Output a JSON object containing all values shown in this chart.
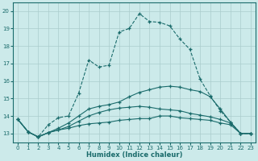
{
  "xlabel": "Humidex (Indice chaleur)",
  "background_color": "#cceaea",
  "grid_color": "#aacccc",
  "line_color": "#1a6b6b",
  "xlim": [
    -0.5,
    23.5
  ],
  "ylim": [
    12.5,
    20.5
  ],
  "yticks": [
    13,
    14,
    15,
    16,
    17,
    18,
    19,
    20
  ],
  "xticks": [
    0,
    1,
    2,
    3,
    4,
    5,
    6,
    7,
    8,
    9,
    10,
    11,
    12,
    13,
    14,
    15,
    16,
    17,
    18,
    19,
    20,
    21,
    22,
    23
  ],
  "line1_x": [
    0,
    1,
    2,
    3,
    4,
    5,
    6,
    7,
    8,
    9,
    10,
    11,
    12,
    13,
    14,
    15,
    16,
    17,
    18,
    19,
    20,
    21,
    22,
    23
  ],
  "line1_y": [
    13.8,
    13.1,
    12.8,
    13.5,
    13.9,
    14.0,
    15.3,
    17.2,
    16.8,
    16.9,
    18.8,
    19.0,
    19.85,
    19.4,
    19.35,
    19.15,
    18.4,
    17.8,
    16.1,
    15.15,
    14.3,
    13.65,
    13.0,
    13.0
  ],
  "line2_x": [
    0,
    1,
    2,
    3,
    4,
    5,
    6,
    7,
    8,
    9,
    10,
    11,
    12,
    13,
    14,
    15,
    16,
    17,
    18,
    19,
    20,
    21,
    22,
    23
  ],
  "line2_y": [
    13.8,
    13.1,
    12.8,
    13.05,
    13.2,
    13.3,
    13.45,
    13.55,
    13.6,
    13.65,
    13.75,
    13.8,
    13.85,
    13.85,
    14.0,
    14.0,
    13.9,
    13.85,
    13.8,
    13.75,
    13.6,
    13.5,
    13.0,
    13.0
  ],
  "line3_x": [
    0,
    1,
    2,
    3,
    4,
    5,
    6,
    7,
    8,
    9,
    10,
    11,
    12,
    13,
    14,
    15,
    16,
    17,
    18,
    19,
    20,
    21,
    22,
    23
  ],
  "line3_y": [
    13.8,
    13.1,
    12.8,
    13.05,
    13.2,
    13.4,
    13.7,
    14.0,
    14.2,
    14.35,
    14.45,
    14.5,
    14.55,
    14.5,
    14.4,
    14.35,
    14.3,
    14.15,
    14.05,
    13.95,
    13.8,
    13.6,
    13.0,
    13.0
  ],
  "line4_x": [
    0,
    1,
    2,
    3,
    4,
    5,
    6,
    7,
    8,
    9,
    10,
    11,
    12,
    13,
    14,
    15,
    16,
    17,
    18,
    19,
    20,
    21,
    22,
    23
  ],
  "line4_y": [
    13.8,
    13.1,
    12.8,
    13.05,
    13.3,
    13.6,
    14.0,
    14.4,
    14.55,
    14.65,
    14.8,
    15.1,
    15.35,
    15.5,
    15.65,
    15.7,
    15.65,
    15.5,
    15.4,
    15.1,
    14.4,
    13.65,
    13.0,
    13.0
  ]
}
